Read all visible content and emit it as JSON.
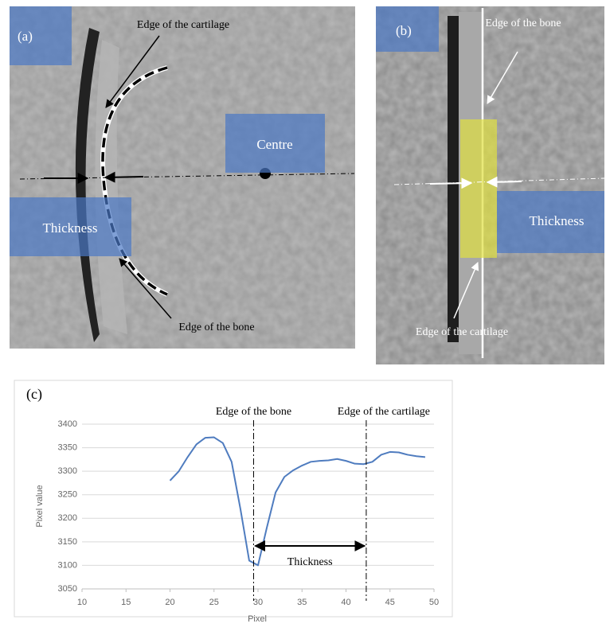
{
  "panel_a": {
    "label": "(a)",
    "cartilage_edge": "Edge of the cartilage",
    "centre": "Centre",
    "thickness": "Thickness",
    "bone_edge": "Edge of the bone"
  },
  "panel_b": {
    "label": "(b)",
    "bone_edge": "Edge of the bone",
    "thickness": "Thickness",
    "cartilage_edge": "Edge of the cartilage"
  },
  "chart_data": {
    "type": "line",
    "label": "(c)",
    "xlabel": "Pixel",
    "ylabel": "Pixel value",
    "x": [
      20,
      21,
      22,
      23,
      24,
      25,
      26,
      27,
      28,
      29,
      30,
      31,
      32,
      33,
      34,
      35,
      36,
      37,
      38,
      39,
      40,
      41,
      42,
      43,
      44,
      45,
      46,
      47,
      48,
      49
    ],
    "values": [
      3280,
      3300,
      3330,
      3357,
      3371,
      3372,
      3360,
      3320,
      3220,
      3110,
      3100,
      3180,
      3255,
      3288,
      3302,
      3312,
      3320,
      3322,
      3323,
      3326,
      3322,
      3316,
      3315,
      3320,
      3335,
      3341,
      3340,
      3335,
      3332,
      3330
    ],
    "color": "#4f7cbf",
    "xlim": [
      10,
      50
    ],
    "xticks": [
      10,
      15,
      20,
      25,
      30,
      35,
      40,
      45,
      50
    ],
    "ylim": [
      3050,
      3400
    ],
    "yticks": [
      3050,
      3100,
      3150,
      3200,
      3250,
      3300,
      3350,
      3400
    ],
    "grid": true,
    "markers": [
      {
        "label": "Edge of the bone",
        "x": 29.5
      },
      {
        "label": "Edge of the cartilage",
        "x": 42.3
      }
    ],
    "annotation": "Thickness"
  }
}
